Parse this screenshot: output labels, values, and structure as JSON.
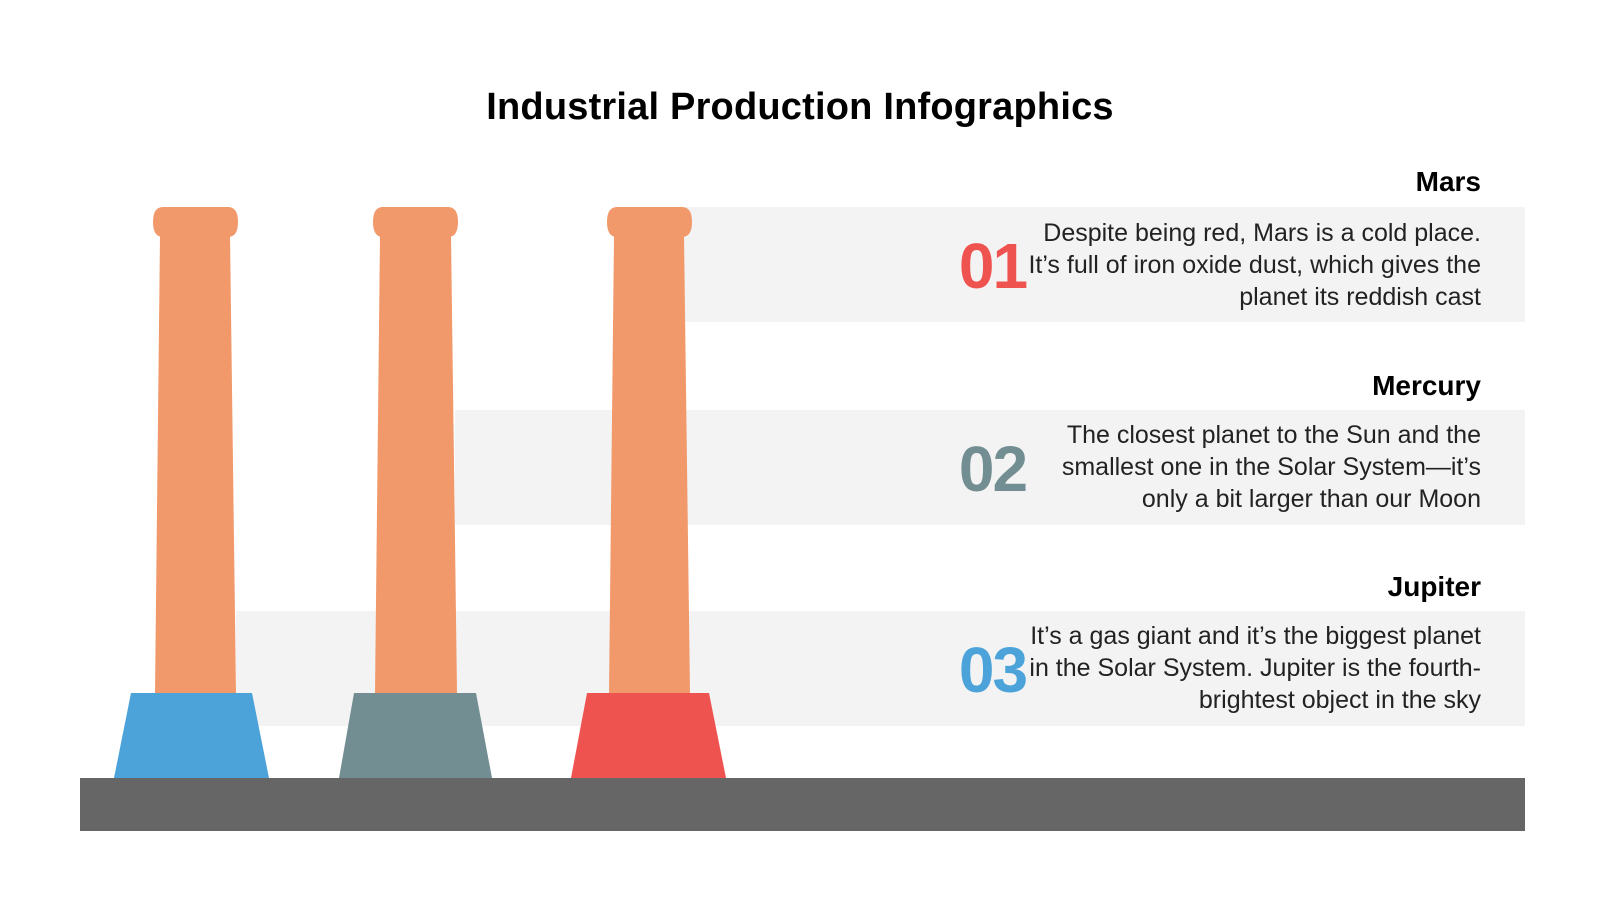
{
  "title": "Industrial Production Infographics",
  "colors": {
    "chimney": "#f2996b",
    "band": "#f3f3f3",
    "ground": "#666666",
    "item1": "#ef5350",
    "item2": "#738e93",
    "item3": "#4ba3da"
  },
  "items": [
    {
      "heading": "Mars",
      "number": "01",
      "text": "Despite being red, Mars is a cold place. It’s full of iron oxide dust, which gives the planet its reddish cast",
      "color": "#ef5350"
    },
    {
      "heading": "Mercury",
      "number": "02",
      "text": "The closest planet to the Sun and the smallest one in the Solar System—it’s only a bit larger than our Moon",
      "color": "#738e93"
    },
    {
      "heading": "Jupiter",
      "number": "03",
      "text": "It’s a gas giant and it’s the biggest planet in the Solar System. Jupiter is the fourth-brightest object in the sky",
      "color": "#4ba3da"
    }
  ],
  "chimneys": [
    {
      "base_color": "#4ba3da"
    },
    {
      "base_color": "#738e93"
    },
    {
      "base_color": "#ef5350"
    }
  ]
}
